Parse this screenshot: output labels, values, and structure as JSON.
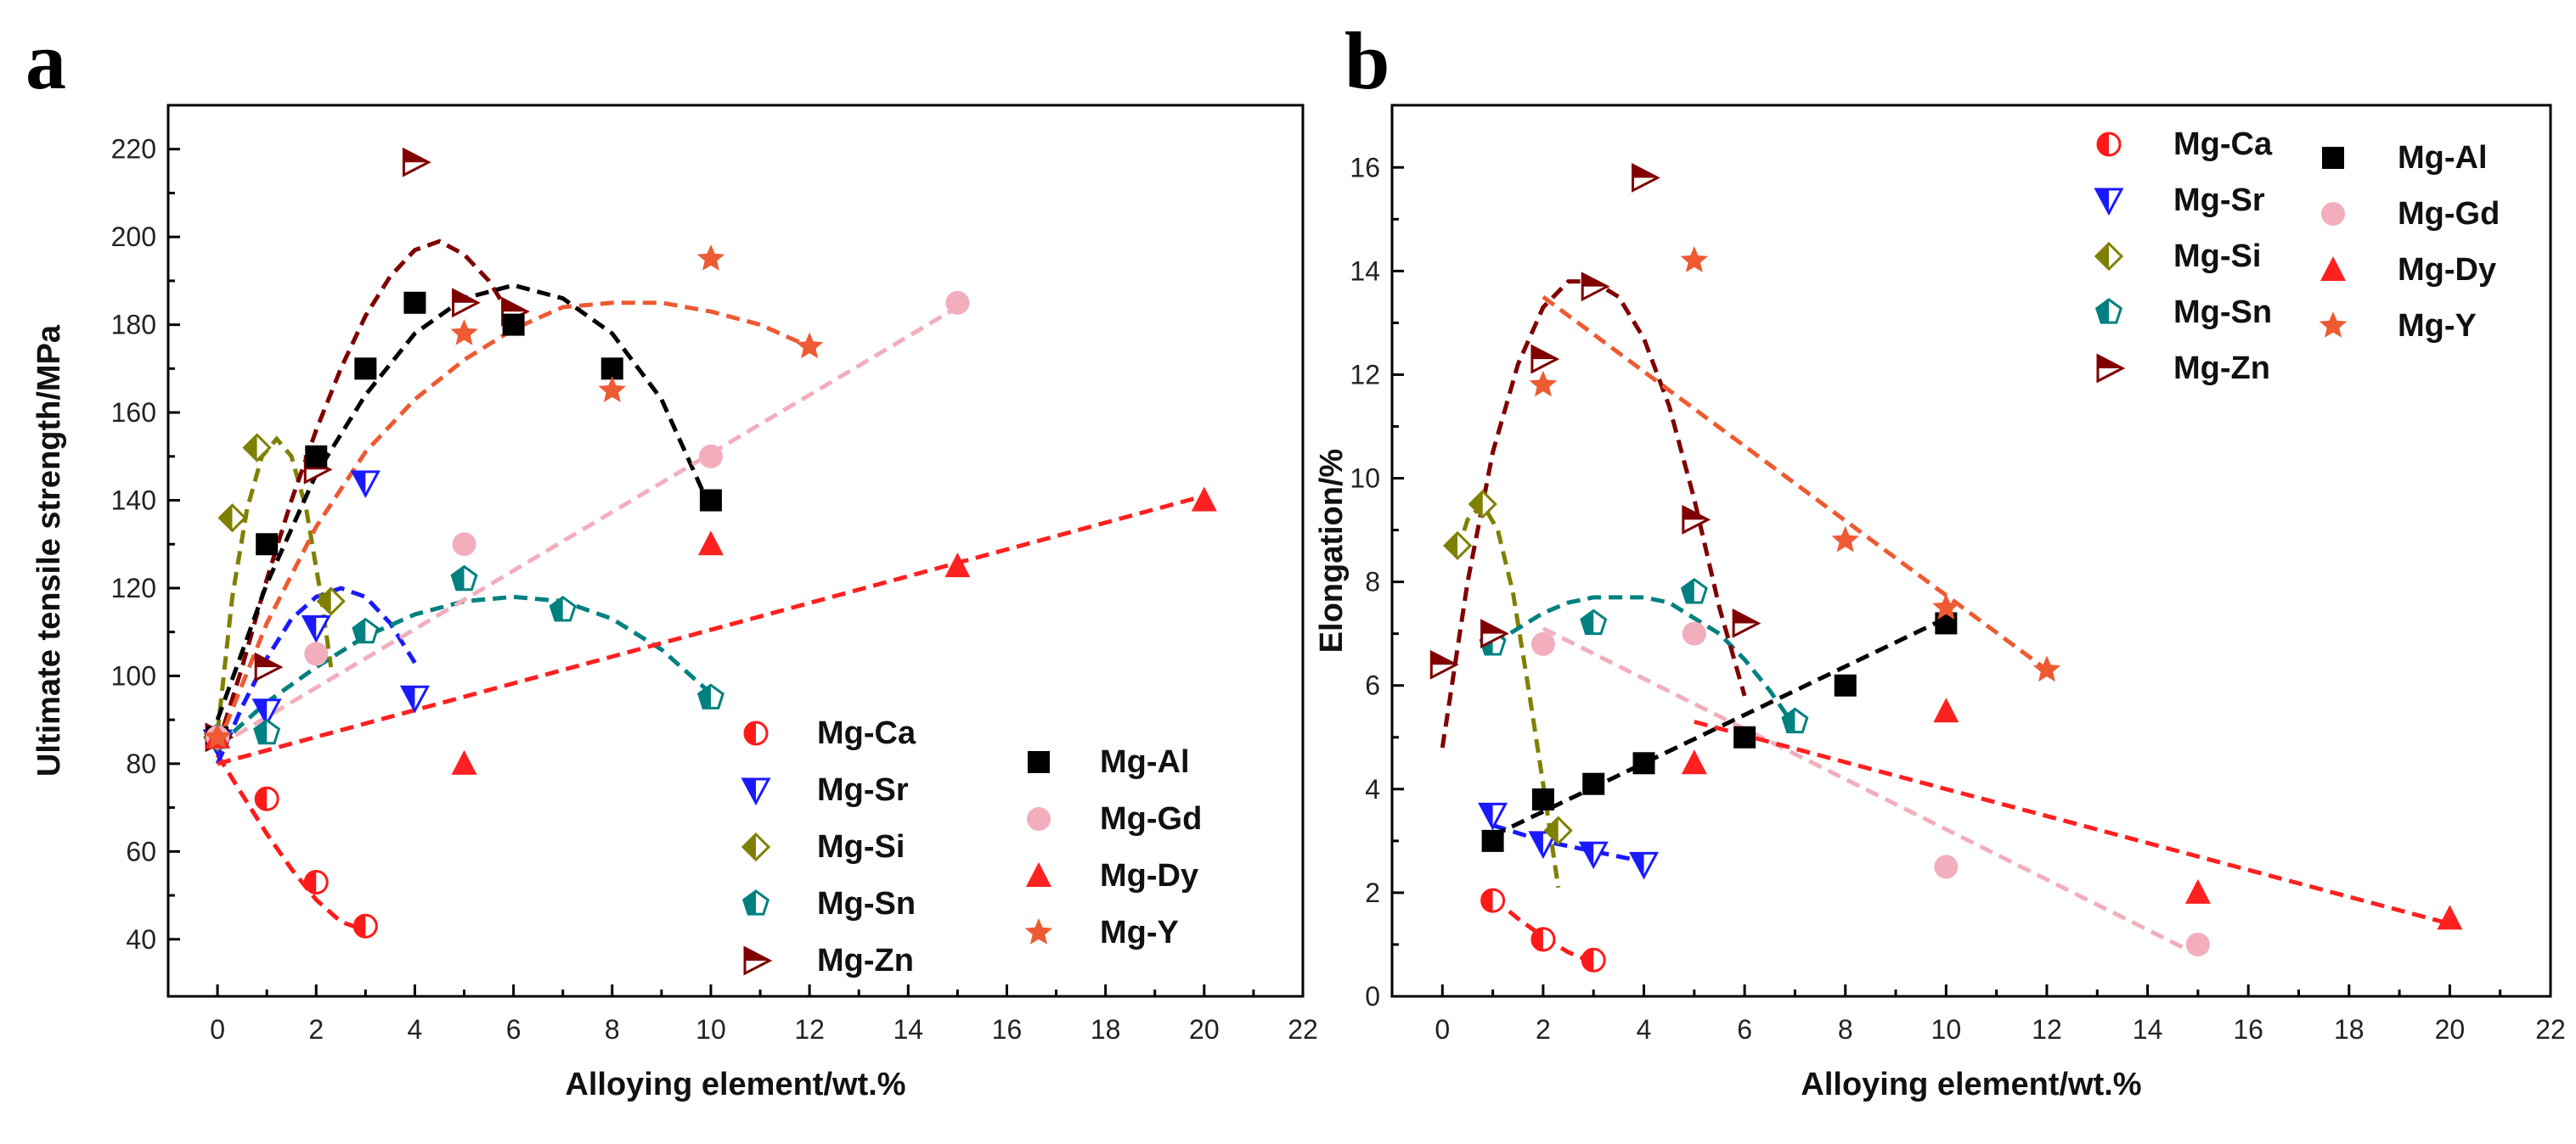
{
  "colors": {
    "Mg-Ca": "#ff1a1a",
    "Mg-Sr": "#1a1aff",
    "Mg-Si": "#808000",
    "Mg-Sn": "#008080",
    "Mg-Zn": "#800000",
    "Mg-Al": "#000000",
    "Mg-Gd": "#f2aebd",
    "Mg-Dy": "#ff2020",
    "Mg-Y": "#ee5a32"
  },
  "chart_data": [
    {
      "type": "scatter",
      "panel_label": "a",
      "title": "",
      "xlabel": "Alloying element/wt.%",
      "ylabel": "Ultimate tensile strength/MPa",
      "xlim": [
        -1,
        22
      ],
      "ylim": [
        27,
        230
      ],
      "xticks": [
        0,
        2,
        4,
        6,
        8,
        10,
        12,
        14,
        16,
        18,
        20,
        22
      ],
      "yticks": [
        40,
        60,
        80,
        100,
        120,
        140,
        160,
        180,
        200,
        220
      ],
      "legend": [
        [
          "Mg-Ca",
          "Mg-Sr",
          "Mg-Si",
          "Mg-Sn",
          "Mg-Zn"
        ],
        [
          "Mg-Al",
          "Mg-Gd",
          "Mg-Dy",
          "Mg-Y"
        ]
      ],
      "legend_position": "bottom-right",
      "series": [
        {
          "name": "Mg-Ca",
          "marker": "half-circle",
          "x": [
            0,
            1,
            2,
            3
          ],
          "y": [
            86,
            72,
            53,
            43
          ],
          "fit": {
            "x": [
              0,
              0.5,
              1,
              1.5,
              2,
              2.5,
              3
            ],
            "y": [
              82,
              73,
              64,
              56,
              49,
              44,
              42
            ]
          }
        },
        {
          "name": "Mg-Sr",
          "marker": "half-triangle-down",
          "x": [
            0,
            1,
            2,
            3,
            4
          ],
          "y": [
            85,
            92,
            111,
            144,
            95
          ],
          "fit": {
            "x": [
              0,
              0.5,
              1,
              1.5,
              2,
              2.5,
              3,
              3.5,
              4
            ],
            "y": [
              80,
              93,
              104,
              113,
              118,
              120,
              118,
              112,
              103
            ]
          }
        },
        {
          "name": "Mg-Si",
          "marker": "half-diamond",
          "x": [
            0,
            0.3,
            0.8,
            2.3
          ],
          "y": [
            86,
            136,
            152,
            117
          ],
          "fit": {
            "x": [
              0,
              0.3,
              0.6,
              0.9,
              1.2,
              1.5,
              1.8,
              2.1,
              2.3
            ],
            "y": [
              87,
              118,
              138,
              150,
              154,
              150,
              138,
              118,
              102
            ]
          }
        },
        {
          "name": "Mg-Sn",
          "marker": "half-pentagon",
          "x": [
            0,
            1,
            3,
            5,
            7,
            10
          ],
          "y": [
            86,
            87,
            110,
            122,
            115,
            95
          ],
          "fit": {
            "x": [
              0,
              1,
              2,
              3,
              4,
              5,
              6,
              7,
              8,
              9,
              10
            ],
            "y": [
              84,
              94,
              102,
              109,
              114,
              117,
              118,
              117,
              113,
              106,
              96
            ]
          }
        },
        {
          "name": "Mg-Zn",
          "marker": "half-triangle-right",
          "x": [
            0,
            1,
            2,
            4,
            5,
            6
          ],
          "y": [
            86,
            102,
            147,
            217,
            185,
            183
          ],
          "fit": {
            "x": [
              0,
              0.5,
              1,
              1.5,
              2,
              2.5,
              3,
              3.5,
              4,
              4.5,
              5,
              5.5,
              6
            ],
            "y": [
              84,
              102,
              122,
              140,
              156,
              170,
              182,
              191,
              197,
              199,
              196,
              190,
              181
            ]
          }
        },
        {
          "name": "Mg-Al",
          "marker": "square",
          "x": [
            0,
            1,
            2,
            3,
            4,
            6,
            8,
            10
          ],
          "y": [
            86,
            130,
            150,
            170,
            185,
            180,
            170,
            140
          ],
          "fit": {
            "x": [
              0,
              1,
              2,
              3,
              4,
              5,
              6,
              7,
              8,
              9,
              10
            ],
            "y": [
              90,
              121,
              146,
              164,
              178,
              186,
              189,
              186,
              178,
              163,
              138
            ]
          }
        },
        {
          "name": "Mg-Gd",
          "marker": "circle",
          "x": [
            0,
            2,
            5,
            10,
            15
          ],
          "y": [
            86,
            105,
            130,
            150,
            185
          ],
          "fit": {
            "x": [
              0,
              15
            ],
            "y": [
              84,
              184
            ]
          }
        },
        {
          "name": "Mg-Dy",
          "marker": "triangle-up",
          "x": [
            0,
            5,
            10,
            15,
            20
          ],
          "y": [
            86,
            80,
            130,
            125,
            140
          ],
          "fit": {
            "x": [
              0,
              20
            ],
            "y": [
              80,
              141
            ]
          }
        },
        {
          "name": "Mg-Y",
          "marker": "star",
          "x": [
            0,
            5,
            8,
            10,
            12
          ],
          "y": [
            86,
            178,
            165,
            195,
            175
          ],
          "fit": {
            "x": [
              0,
              1,
              2,
              3,
              4,
              5,
              6,
              7,
              8,
              9,
              10,
              11,
              12
            ],
            "y": [
              84,
              112,
              134,
              151,
              163,
              172,
              179,
              184,
              185,
              185,
              183,
              180,
              175
            ]
          }
        }
      ]
    },
    {
      "type": "scatter",
      "panel_label": "b",
      "title": "",
      "xlabel": "Alloying element/wt.%",
      "ylabel": "Elongation/%",
      "xlim": [
        -1,
        22
      ],
      "ylim": [
        0,
        17.2
      ],
      "xticks": [
        0,
        2,
        4,
        6,
        8,
        10,
        12,
        14,
        16,
        18,
        20,
        22
      ],
      "yticks": [
        0,
        2,
        4,
        6,
        8,
        10,
        12,
        14,
        16
      ],
      "legend": [
        [
          "Mg-Ca",
          "Mg-Sr",
          "Mg-Si",
          "Mg-Sn",
          "Mg-Zn"
        ],
        [
          "Mg-Al",
          "Mg-Gd",
          "Mg-Dy",
          "Mg-Y"
        ]
      ],
      "legend_position": "top-right",
      "series": [
        {
          "name": "Mg-Ca",
          "marker": "half-circle",
          "x": [
            1,
            2,
            3
          ],
          "y": [
            1.85,
            1.1,
            0.7
          ],
          "fit": {
            "x": [
              1,
              1.5,
              2,
              2.5,
              3
            ],
            "y": [
              1.9,
              1.5,
              1.15,
              0.85,
              0.65
            ]
          }
        },
        {
          "name": "Mg-Sr",
          "marker": "half-triangle-down",
          "x": [
            1,
            2,
            3,
            4
          ],
          "y": [
            3.5,
            2.95,
            2.75,
            2.55
          ],
          "fit": {
            "x": [
              1,
              2,
              3,
              4
            ],
            "y": [
              3.3,
              3.0,
              2.8,
              2.6
            ]
          }
        },
        {
          "name": "Mg-Si",
          "marker": "half-diamond",
          "x": [
            0.3,
            0.8,
            2.3
          ],
          "y": [
            8.7,
            9.5,
            3.2
          ],
          "fit": {
            "x": [
              0.3,
              0.5,
              0.8,
              1.1,
              1.4,
              1.7,
              2.0,
              2.3
            ],
            "y": [
              8.6,
              9.2,
              9.5,
              9.0,
              7.8,
              6.0,
              4.1,
              2.1
            ]
          }
        },
        {
          "name": "Mg-Sn",
          "marker": "half-pentagon",
          "x": [
            1,
            3,
            5,
            7
          ],
          "y": [
            6.8,
            7.2,
            7.8,
            5.3
          ],
          "fit": {
            "x": [
              1,
              1.5,
              2,
              2.5,
              3,
              3.5,
              4,
              4.5,
              5,
              5.5,
              6,
              6.5,
              7
            ],
            "y": [
              6.8,
              7.1,
              7.4,
              7.6,
              7.7,
              7.7,
              7.7,
              7.6,
              7.3,
              7.0,
              6.5,
              5.9,
              5.2
            ]
          }
        },
        {
          "name": "Mg-Zn",
          "marker": "half-triangle-right",
          "x": [
            0,
            1,
            2,
            3,
            4,
            5,
            6
          ],
          "y": [
            6.4,
            7.0,
            12.3,
            13.7,
            15.8,
            9.2,
            7.2
          ],
          "fit": {
            "x": [
              0,
              0.5,
              1,
              1.5,
              2,
              2.5,
              3,
              3.5,
              4,
              4.5,
              5,
              5.5,
              6
            ],
            "y": [
              4.8,
              8.0,
              10.5,
              12.2,
              13.3,
              13.8,
              13.8,
              13.5,
              12.7,
              11.4,
              9.6,
              7.5,
              5.8
            ]
          }
        },
        {
          "name": "Mg-Al",
          "marker": "square",
          "x": [
            1,
            2,
            3,
            4,
            6,
            8,
            10
          ],
          "y": [
            3.0,
            3.8,
            4.1,
            4.5,
            5.0,
            6.0,
            7.2
          ],
          "fit": {
            "x": [
              1,
              10
            ],
            "y": [
              3.1,
              7.3
            ]
          }
        },
        {
          "name": "Mg-Gd",
          "marker": "circle",
          "x": [
            2,
            5,
            10,
            15
          ],
          "y": [
            6.8,
            7.0,
            2.5,
            1.0
          ],
          "fit": {
            "x": [
              2,
              15
            ],
            "y": [
              7.1,
              0.8
            ]
          }
        },
        {
          "name": "Mg-Dy",
          "marker": "triangle-up",
          "x": [
            5,
            10,
            15,
            20
          ],
          "y": [
            4.5,
            5.5,
            2.0,
            1.5
          ],
          "fit": {
            "x": [
              5,
              20
            ],
            "y": [
              5.3,
              1.4
            ]
          }
        },
        {
          "name": "Mg-Y",
          "marker": "star",
          "x": [
            2,
            5,
            8,
            10,
            12
          ],
          "y": [
            11.8,
            14.2,
            8.8,
            7.5,
            6.3
          ],
          "fit": {
            "x": [
              2,
              12
            ],
            "y": [
              13.5,
              6.3
            ]
          }
        }
      ]
    }
  ]
}
